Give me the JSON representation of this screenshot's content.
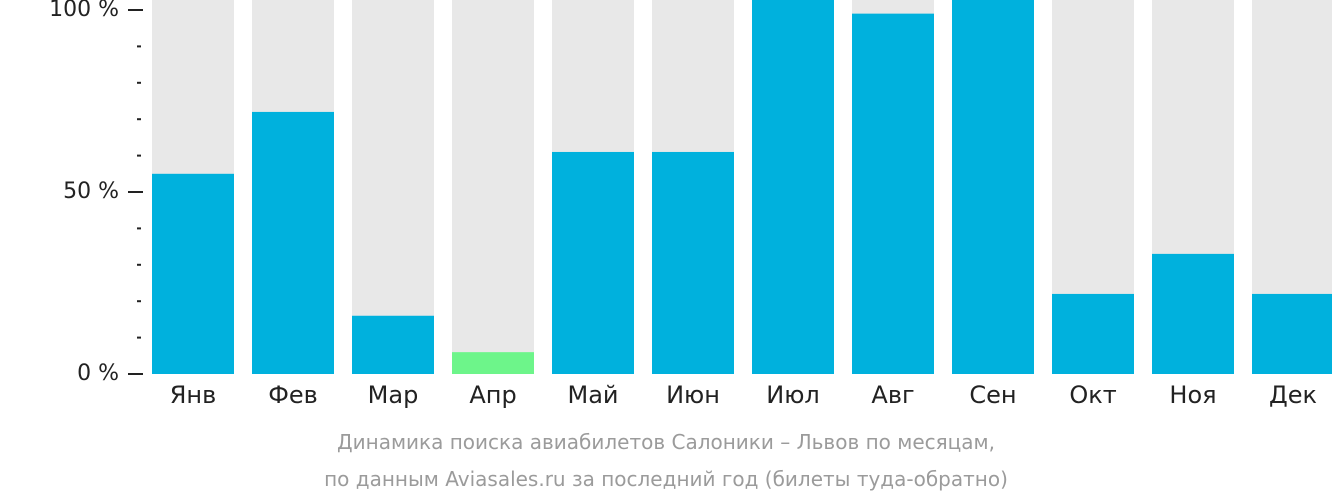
{
  "chart_data": {
    "type": "bar",
    "categories": [
      "Янв",
      "Фев",
      "Мар",
      "Апр",
      "Май",
      "Июн",
      "Июл",
      "Авг",
      "Сен",
      "Окт",
      "Ноя",
      "Дек"
    ],
    "values": [
      55,
      72,
      16,
      6,
      61,
      61,
      104,
      99,
      104,
      22,
      33,
      22
    ],
    "ylim": [
      0,
      100
    ],
    "yticks": [
      {
        "value": 100,
        "label": "100 %"
      },
      {
        "value": 50,
        "label": "50 %"
      },
      {
        "value": 0,
        "label": "0 %"
      }
    ],
    "minor_tick_step": 10,
    "colors": {
      "bar": "#00b1dd",
      "highlight": "#6df58a",
      "track": "#e8e8e8",
      "axis": "#222222"
    },
    "highlight_index": 3,
    "caption": [
      "Динамика поиска авиабилетов Салоники – Львов по месяцам,",
      "по данным Aviasales.ru за последний год (билеты туда-обратно)"
    ]
  }
}
